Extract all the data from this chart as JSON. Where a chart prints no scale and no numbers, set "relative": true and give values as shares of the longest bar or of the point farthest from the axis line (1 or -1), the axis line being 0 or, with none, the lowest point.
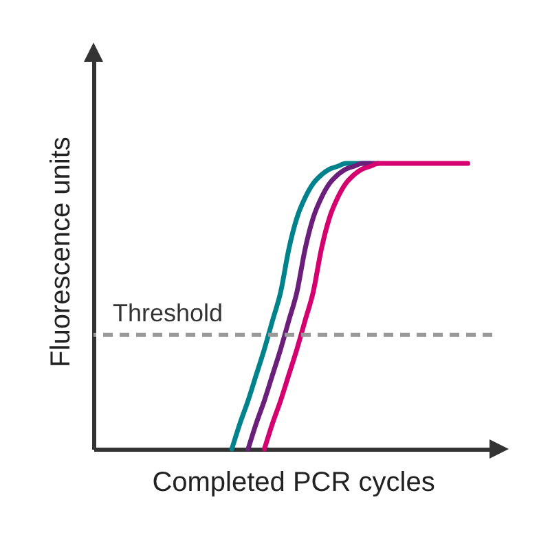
{
  "chart_data": {
    "type": "line",
    "relative": true,
    "xlabel": "Completed PCR cycles",
    "ylabel": "Fluorescence units",
    "categories": [
      null,
      null,
      null,
      null,
      null,
      null,
      null,
      null,
      null,
      null,
      null,
      null,
      null,
      null,
      null,
      null,
      null,
      null,
      null,
      null,
      null,
      null,
      null,
      null,
      null,
      null,
      null,
      null,
      null,
      null,
      null,
      null,
      null,
      null,
      null,
      null,
      null,
      null,
      null,
      null,
      null,
      null,
      null,
      null,
      null,
      null,
      null,
      null,
      null,
      null
    ],
    "series": [
      {
        "color": "#00828c",
        "values": [
          null,
          null,
          null,
          null,
          null,
          null,
          null,
          null,
          null,
          null,
          null,
          null,
          null,
          null,
          null,
          null,
          null,
          0,
          0.09,
          0.17,
          0.26,
          0.35,
          0.45,
          0.55,
          0.7,
          0.81,
          0.88,
          0.93,
          0.96,
          0.98,
          0.99,
          1,
          1,
          1,
          1,
          null,
          null,
          null,
          null,
          null,
          null,
          null,
          null,
          null,
          null,
          null,
          null,
          null,
          null,
          null
        ]
      },
      {
        "color": "#6a1f7a",
        "values": [
          null,
          null,
          null,
          null,
          null,
          null,
          null,
          null,
          null,
          null,
          null,
          null,
          null,
          null,
          null,
          null,
          null,
          null,
          null,
          0,
          0.09,
          0.17,
          0.26,
          0.35,
          0.45,
          0.55,
          0.7,
          0.81,
          0.88,
          0.93,
          0.96,
          0.98,
          0.99,
          1,
          1,
          1,
          null,
          null,
          null,
          null,
          null,
          null,
          null,
          null,
          null,
          null,
          null,
          null,
          null,
          null
        ]
      },
      {
        "color": "#d4006f",
        "values": [
          null,
          null,
          null,
          null,
          null,
          null,
          null,
          null,
          null,
          null,
          null,
          null,
          null,
          null,
          null,
          null,
          null,
          null,
          null,
          null,
          null,
          0,
          0.09,
          0.17,
          0.26,
          0.35,
          0.45,
          0.55,
          0.7,
          0.81,
          0.88,
          0.93,
          0.96,
          0.98,
          0.99,
          1,
          1,
          1,
          1,
          1,
          1,
          1,
          1,
          1,
          1,
          1,
          1,
          null,
          null,
          null
        ]
      }
    ],
    "ref_lines": [
      {
        "axis": "y",
        "value": 0.4,
        "label": "Threshold",
        "color": "#999999",
        "line_style": "dashed"
      }
    ],
    "legend": false,
    "grid": false,
    "marker": "none",
    "line_style": "solid"
  }
}
